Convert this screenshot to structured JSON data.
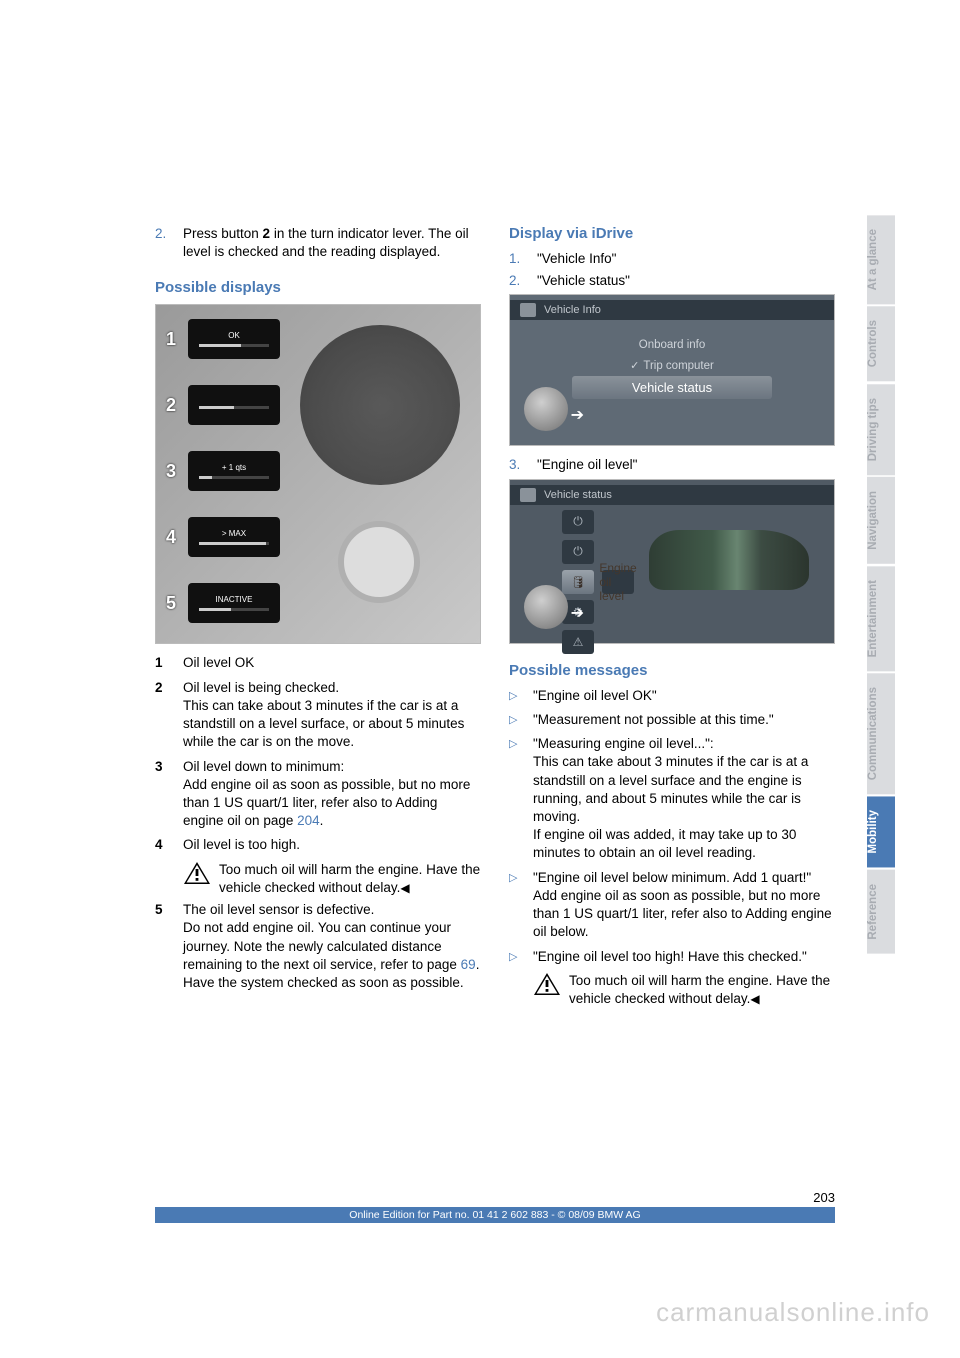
{
  "colors": {
    "blue": "#4a7ab4",
    "grey_tab_bg": "#dadcdf",
    "grey_tab_fg": "#a8acb2",
    "white": "#ffffff"
  },
  "left": {
    "step2_num": "2.",
    "step2_a": "Press button ",
    "step2_bold": "2",
    "step2_b": " in the turn indicator lever. The oil level is checked and the reading displayed.",
    "section_title": "Possible displays",
    "display_rows": [
      {
        "n": "1",
        "label": "OK",
        "fill": 60
      },
      {
        "n": "2",
        "label": "",
        "fill": 50
      },
      {
        "n": "3",
        "label": "+ 1 qts",
        "fill": 18
      },
      {
        "n": "4",
        "label": "> MAX",
        "fill": 95
      },
      {
        "n": "5",
        "label": "INACTIVE",
        "fill": 45
      }
    ],
    "legend": [
      {
        "n": "1",
        "lines": [
          "Oil level OK"
        ]
      },
      {
        "n": "2",
        "lines": [
          "Oil level is being checked.",
          "This can take about 3 minutes if the car is at a standstill on a level surface, or about 5 minutes while the car is on the move."
        ]
      },
      {
        "n": "3",
        "lines": [
          "Oil level down to minimum:",
          "Add engine oil as soon as possible, but no more than 1 US quart/1 liter, refer also to Adding engine oil on page "
        ],
        "link": "204",
        "link_suffix": "."
      },
      {
        "n": "4",
        "lines": [
          "Oil level is too high."
        ]
      }
    ],
    "warn4": "Too much oil will harm the engine. Have the vehicle checked without delay.",
    "legend5": {
      "n": "5",
      "lines": [
        "The oil level sensor is defective.",
        "Do not add engine oil. You can continue your journey. Note the newly calculated distance remaining to the next oil service, refer to page "
      ],
      "link": "69",
      "link_suffix": ". Have the system checked as soon as possible."
    }
  },
  "right": {
    "section_title": "Display via iDrive",
    "step1_num": "1.",
    "step1": "\"Vehicle Info\"",
    "step2_num": "2.",
    "step2": "\"Vehicle status\"",
    "idrive1": {
      "header": "Vehicle Info",
      "line1": "Onboard info",
      "line2": "Trip computer",
      "line3": "Vehicle status"
    },
    "step3_num": "3.",
    "step3": "\"Engine oil level\"",
    "idrive2": {
      "header": "Vehicle status",
      "sel_label": "Engine oil level"
    },
    "messages_title": "Possible messages",
    "msgs": [
      {
        "text": "\"Engine oil level OK\""
      },
      {
        "text": "\"Measurement not possible at this time.\""
      },
      {
        "text": "\"Measuring engine oil level...\":",
        "cont": [
          "This can take about 3 minutes if the car is at a standstill on a level surface and the engine is running, and about 5 minutes while the car is moving.",
          "If engine oil was added, it may take up to 30 minutes to obtain an oil level reading."
        ]
      },
      {
        "text": "\"Engine oil level below minimum. Add 1 quart!\"",
        "cont": [
          "Add engine oil as soon as possible, but no more than 1 US quart/1 liter, refer also to Adding engine oil below."
        ]
      },
      {
        "text": "\"Engine oil level too high! Have this checked.\""
      }
    ],
    "warn": "Too much oil will harm the engine. Have the vehicle checked without delay."
  },
  "tabs": [
    {
      "label": "At a glance",
      "active": false
    },
    {
      "label": "Controls",
      "active": false
    },
    {
      "label": "Driving tips",
      "active": false
    },
    {
      "label": "Navigation",
      "active": false
    },
    {
      "label": "Entertainment",
      "active": false
    },
    {
      "label": "Communications",
      "active": false
    },
    {
      "label": "Mobility",
      "active": true
    },
    {
      "label": "Reference",
      "active": false
    }
  ],
  "footer": {
    "page": "203",
    "line": "Online Edition for Part no. 01 41 2 602 883 - © 08/09 BMW AG"
  },
  "watermark": "carmanualsonline.info"
}
